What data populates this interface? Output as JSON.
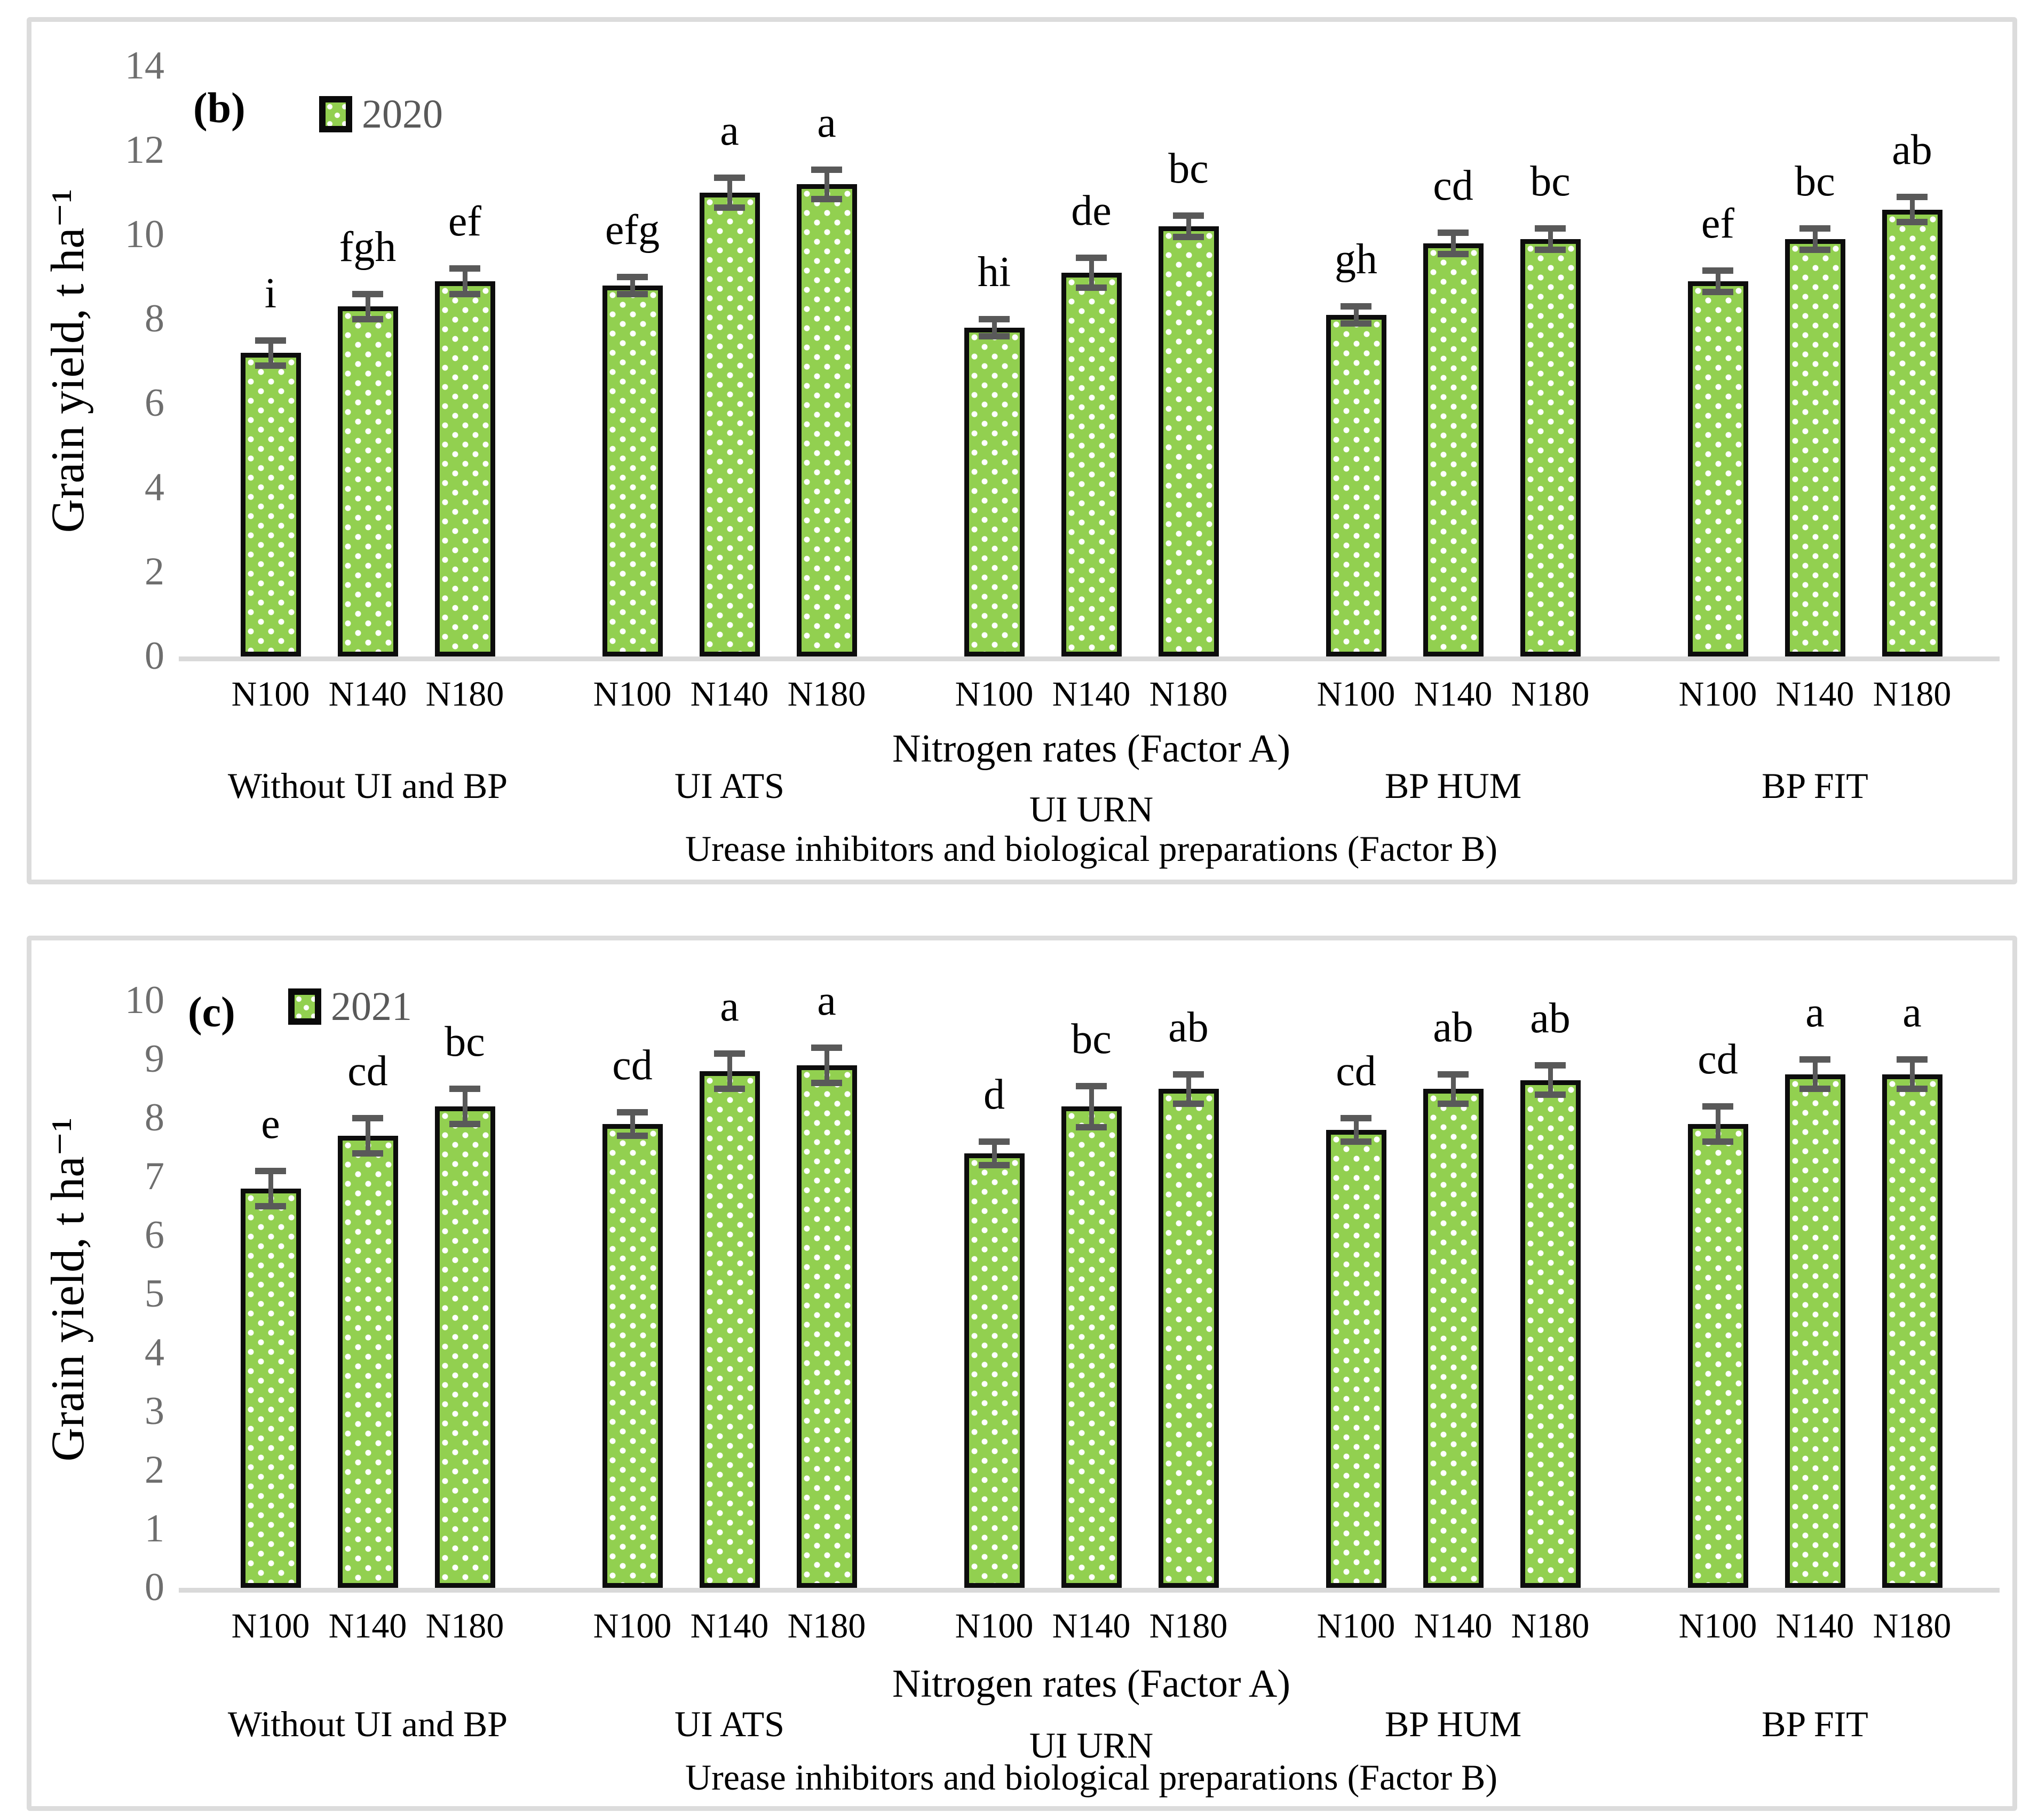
{
  "colors": {
    "bar_fill": "#92D050",
    "bar_border": "#0d0d0d",
    "bar_dots": "#ffffff",
    "error_bar": "#595959",
    "axis_tick_text": "#6e6e6e",
    "axis_line": "#d9d9d9",
    "panel_border": "#dcdcdc",
    "text": "#000000"
  },
  "chart_data": [
    {
      "type": "bar",
      "panel_label": "(b)",
      "legend_label": "2020",
      "legend_swatch": "dotted-green-square",
      "title": "",
      "ylabel": "Grain yield, t ha⁻¹",
      "ylim": [
        0,
        14
      ],
      "ytick_step": 2,
      "yticks": [
        14,
        12,
        10,
        8,
        6,
        4,
        2,
        0
      ],
      "grid": "off",
      "legend_position": "top-left-inside",
      "xlabel": "Nitrogen rates (Factor A)",
      "xlabel2": "Urease inhibitors and biological preparations (Factor B)",
      "bar_labels": [
        "N100",
        "N140",
        "N180"
      ],
      "group_labels": [
        "Without UI and BP",
        "UI ATS",
        "UI URN",
        "BP HUM",
        "BP FIT"
      ],
      "values": [
        [
          7.2,
          8.3,
          8.9
        ],
        [
          8.8,
          11.0,
          11.2
        ],
        [
          7.8,
          9.1,
          10.2
        ],
        [
          8.1,
          9.8,
          9.9
        ],
        [
          8.9,
          9.9,
          10.6
        ]
      ],
      "errors": [
        [
          0.3,
          0.3,
          0.3
        ],
        [
          0.2,
          0.35,
          0.35
        ],
        [
          0.2,
          0.35,
          0.25
        ],
        [
          0.2,
          0.25,
          0.25
        ],
        [
          0.25,
          0.25,
          0.3
        ]
      ],
      "letters": [
        [
          "i",
          "fgh",
          "ef"
        ],
        [
          "efg",
          "a",
          "a"
        ],
        [
          "hi",
          "de",
          "bc"
        ],
        [
          "gh",
          "cd",
          "bc"
        ],
        [
          "ef",
          "bc",
          "ab"
        ]
      ]
    },
    {
      "type": "bar",
      "panel_label": "(c)",
      "legend_label": "2021",
      "legend_swatch": "dotted-green-square",
      "title": "",
      "ylabel": "Grain yield, t ha⁻¹",
      "ylim": [
        0,
        10
      ],
      "ytick_step": 1,
      "yticks": [
        10,
        9,
        8,
        7,
        6,
        5,
        4,
        3,
        2,
        1,
        0
      ],
      "grid": "off",
      "legend_position": "top-left-inside",
      "xlabel": "Nitrogen rates (Factor A)",
      "xlabel2": "Urease inhibitors and biological preparations (Factor B)",
      "bar_labels": [
        "N100",
        "N140",
        "N180"
      ],
      "group_labels": [
        "Without UI and BP",
        "UI ATS",
        "UI URN",
        "BP HUM",
        "BP FIT"
      ],
      "values": [
        [
          6.8,
          7.7,
          8.2
        ],
        [
          7.9,
          8.8,
          8.9
        ],
        [
          7.4,
          8.2,
          8.5
        ],
        [
          7.8,
          8.5,
          8.65
        ],
        [
          7.9,
          8.75,
          8.75
        ]
      ],
      "errors": [
        [
          0.3,
          0.3,
          0.3
        ],
        [
          0.2,
          0.3,
          0.3
        ],
        [
          0.2,
          0.35,
          0.25
        ],
        [
          0.2,
          0.25,
          0.25
        ],
        [
          0.3,
          0.25,
          0.25
        ]
      ],
      "letters": [
        [
          "e",
          "cd",
          "bc"
        ],
        [
          "cd",
          "a",
          "a"
        ],
        [
          "d",
          "bc",
          "ab"
        ],
        [
          "cd",
          "ab",
          "ab"
        ],
        [
          "cd",
          "a",
          "a"
        ]
      ]
    }
  ]
}
